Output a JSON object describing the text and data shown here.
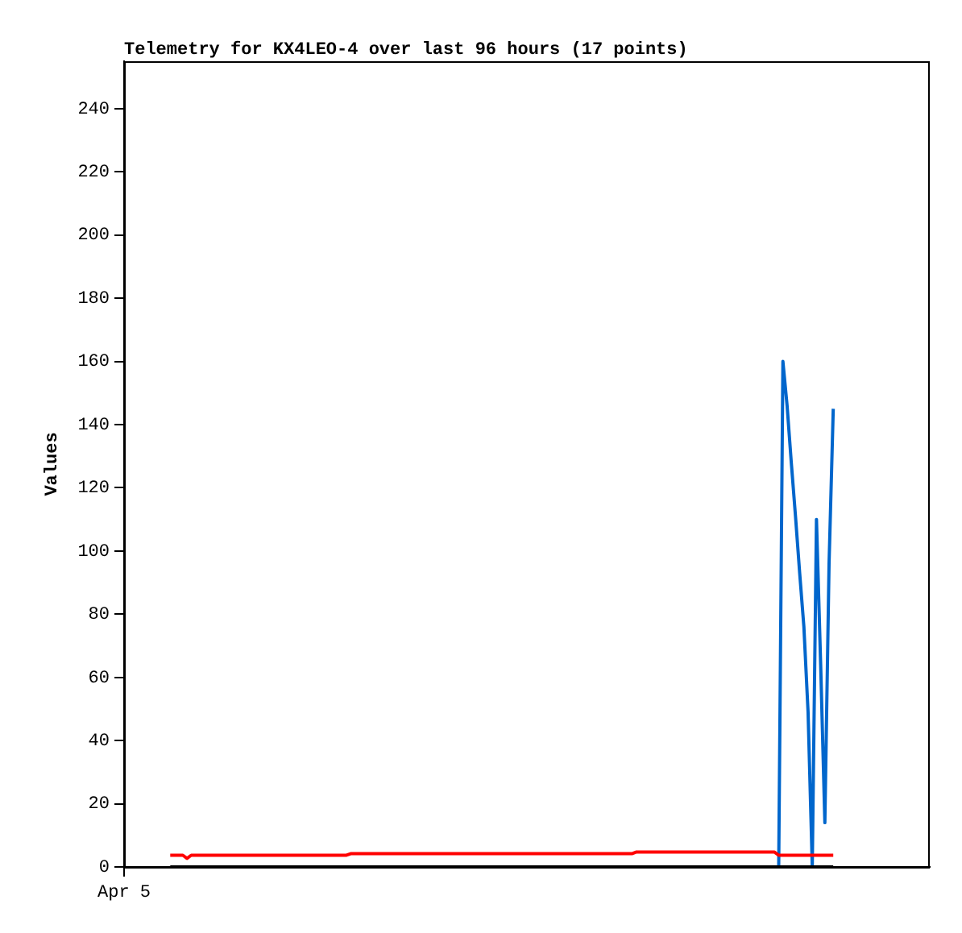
{
  "chart_data": {
    "type": "line",
    "title": "Telemetry for KX4LEO-4 over last 96 hours (17 points)",
    "ylabel": "Values",
    "categories": [
      "Apr 5",
      null,
      null,
      null,
      null,
      null,
      null,
      null,
      null,
      null,
      null,
      null,
      null,
      null,
      null,
      null,
      null,
      null,
      null,
      null,
      null,
      null,
      null,
      null,
      null,
      null,
      null,
      null,
      null,
      null,
      null,
      null,
      null,
      null,
      null,
      null,
      null,
      null,
      null,
      null,
      null,
      null,
      null,
      null,
      null,
      null,
      null,
      null,
      null,
      null,
      null,
      null,
      null,
      null,
      null,
      null,
      null,
      null,
      null,
      null,
      null,
      null,
      null,
      null,
      null,
      null,
      null,
      null,
      null,
      null,
      null,
      null,
      null,
      null,
      null,
      null,
      null,
      null,
      null,
      null,
      null,
      null,
      null,
      null,
      null,
      null,
      null,
      null,
      null,
      null,
      null,
      null,
      null,
      null,
      null,
      null,
      null,
      null,
      null,
      null,
      null,
      null,
      null,
      null,
      null,
      null,
      null,
      null,
      null,
      null,
      null,
      null,
      null,
      null,
      null,
      null,
      null,
      null,
      null,
      null,
      null,
      null,
      null,
      null,
      null,
      null,
      null,
      null,
      null,
      null,
      null,
      null,
      null,
      null,
      null,
      null,
      null,
      null,
      null,
      null,
      null,
      null,
      null,
      null,
      null,
      null,
      null,
      null,
      null,
      null,
      null,
      null,
      null,
      null,
      null,
      null,
      null,
      null,
      null,
      null,
      null,
      null,
      null,
      null,
      null,
      null,
      null,
      null,
      null,
      null,
      null,
      null,
      null,
      null,
      null,
      null,
      null,
      null,
      null,
      null,
      null,
      null,
      null,
      null,
      null,
      null,
      null,
      null,
      null,
      null,
      null,
      null,
      null
    ],
    "ylim": [
      0,
      255
    ],
    "yticks": [
      0,
      20,
      40,
      60,
      80,
      100,
      120,
      140,
      160,
      180,
      200,
      220,
      240
    ],
    "grid": false,
    "legend": false,
    "marker": "none",
    "line_style": "solid",
    "series": [
      {
        "color": "#000000",
        "values": [
          null,
          null,
          null,
          null,
          null,
          null,
          null,
          null,
          null,
          null,
          null,
          0,
          0,
          0,
          0,
          0,
          0,
          0,
          0,
          0,
          0,
          0,
          0,
          0,
          0,
          0,
          0,
          0,
          0,
          0,
          0,
          0,
          0,
          0,
          0,
          0,
          0,
          0,
          0,
          0,
          0,
          0,
          0,
          0,
          0,
          0,
          0,
          0,
          0,
          0,
          0,
          0,
          0,
          0,
          0,
          0,
          0,
          0,
          0,
          0,
          0,
          0,
          0,
          0,
          0,
          0,
          0,
          0,
          0,
          0,
          0,
          0,
          0,
          0,
          0,
          0,
          0,
          0,
          0,
          0,
          0,
          0,
          0,
          0,
          0,
          0,
          0,
          0,
          0,
          0,
          0,
          0,
          0,
          0,
          0,
          0,
          0,
          0,
          0,
          0,
          0,
          0,
          0,
          0,
          0,
          0,
          0,
          0,
          0,
          0,
          0,
          0,
          0,
          0,
          0,
          0,
          0,
          0,
          0,
          0,
          0,
          0,
          0,
          0,
          0,
          0,
          0,
          0,
          0,
          0,
          0,
          0,
          0,
          0,
          0,
          0,
          0,
          0,
          0,
          0,
          0,
          0,
          0,
          0,
          0,
          0,
          0,
          0,
          0,
          0,
          0,
          0,
          0,
          0,
          0,
          0,
          0,
          0,
          0,
          0,
          0,
          0,
          0,
          0,
          0,
          0,
          0,
          0,
          0,
          0,
          null,
          null,
          null,
          null,
          null,
          null,
          null,
          null,
          null,
          null,
          null,
          null,
          null,
          null,
          null,
          null,
          null,
          null,
          null,
          null,
          null,
          null,
          null
        ]
      },
      {
        "color": "#ff0000",
        "values": [
          null,
          null,
          null,
          null,
          null,
          null,
          null,
          null,
          null,
          null,
          null,
          3.7,
          3.7,
          3.7,
          3.7,
          2.7,
          3.7,
          3.7,
          3.7,
          3.7,
          3.7,
          3.7,
          3.7,
          3.7,
          3.7,
          3.7,
          3.7,
          3.7,
          3.7,
          3.7,
          3.7,
          3.7,
          3.7,
          3.7,
          3.7,
          3.7,
          3.7,
          3.7,
          3.7,
          3.7,
          3.7,
          3.7,
          3.7,
          3.7,
          3.7,
          3.7,
          3.7,
          3.7,
          3.7,
          3.7,
          3.7,
          3.7,
          3.7,
          3.7,
          4.2,
          4.2,
          4.2,
          4.2,
          4.2,
          4.2,
          4.2,
          4.2,
          4.2,
          4.2,
          4.2,
          4.2,
          4.2,
          4.2,
          4.2,
          4.2,
          4.2,
          4.2,
          4.2,
          4.2,
          4.2,
          4.2,
          4.2,
          4.2,
          4.2,
          4.2,
          4.2,
          4.2,
          4.2,
          4.2,
          4.2,
          4.2,
          4.2,
          4.2,
          4.2,
          4.2,
          4.2,
          4.2,
          4.2,
          4.2,
          4.2,
          4.2,
          4.2,
          4.2,
          4.2,
          4.2,
          4.2,
          4.2,
          4.2,
          4.2,
          4.2,
          4.2,
          4.2,
          4.2,
          4.2,
          4.2,
          4.2,
          4.2,
          4.2,
          4.2,
          4.2,
          4.2,
          4.2,
          4.2,
          4.2,
          4.2,
          4.2,
          4.2,
          4.7,
          4.7,
          4.7,
          4.7,
          4.7,
          4.7,
          4.7,
          4.7,
          4.7,
          4.7,
          4.7,
          4.7,
          4.7,
          4.7,
          4.7,
          4.7,
          4.7,
          4.7,
          4.7,
          4.7,
          4.7,
          4.7,
          4.7,
          4.7,
          4.7,
          4.7,
          4.7,
          4.7,
          4.7,
          4.7,
          4.7,
          4.7,
          4.7,
          4.7,
          3.7,
          3.7,
          3.7,
          3.7,
          3.7,
          3.7,
          3.7,
          3.7,
          3.7,
          3.7,
          3.7,
          3.7,
          3.7,
          3.7,
          null,
          null,
          null,
          null,
          null,
          null,
          null,
          null,
          null,
          null,
          null,
          null,
          null,
          null,
          null,
          null,
          null,
          null,
          null,
          null,
          null,
          null,
          null
        ]
      },
      {
        "color": "#0066cc",
        "values": [
          null,
          null,
          null,
          null,
          null,
          null,
          null,
          null,
          null,
          null,
          null,
          null,
          null,
          null,
          null,
          null,
          null,
          null,
          null,
          null,
          null,
          null,
          null,
          null,
          null,
          null,
          null,
          null,
          null,
          null,
          null,
          null,
          null,
          null,
          null,
          null,
          null,
          null,
          null,
          null,
          null,
          null,
          null,
          null,
          null,
          null,
          null,
          null,
          null,
          null,
          null,
          null,
          null,
          null,
          null,
          null,
          null,
          null,
          null,
          null,
          null,
          null,
          null,
          null,
          null,
          null,
          null,
          null,
          null,
          null,
          null,
          null,
          null,
          null,
          null,
          null,
          null,
          null,
          null,
          null,
          null,
          null,
          null,
          null,
          null,
          null,
          null,
          null,
          null,
          null,
          null,
          null,
          null,
          null,
          null,
          null,
          null,
          null,
          null,
          null,
          null,
          null,
          null,
          null,
          null,
          null,
          null,
          null,
          null,
          null,
          null,
          null,
          null,
          null,
          null,
          null,
          null,
          null,
          null,
          null,
          null,
          null,
          null,
          null,
          null,
          null,
          null,
          null,
          null,
          null,
          null,
          null,
          null,
          null,
          null,
          null,
          null,
          null,
          null,
          null,
          null,
          null,
          null,
          null,
          null,
          null,
          null,
          null,
          null,
          null,
          null,
          null,
          null,
          null,
          null,
          null,
          0,
          160,
          146,
          128,
          111,
          93,
          76,
          49,
          0,
          110,
          64,
          14,
          96,
          145,
          null,
          null,
          null,
          null,
          null,
          null,
          null,
          null,
          null,
          null,
          null,
          null,
          null,
          null,
          null,
          null,
          null,
          null,
          null,
          null,
          null,
          null,
          null
        ]
      }
    ]
  }
}
